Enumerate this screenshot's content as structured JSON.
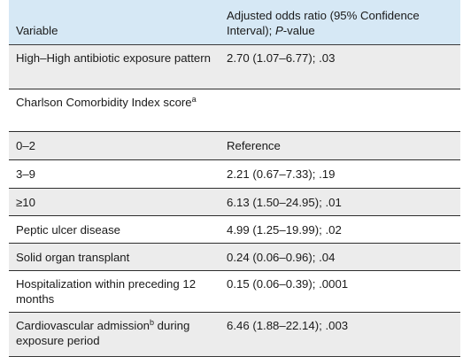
{
  "header": {
    "variable_label": "Variable",
    "col2_line1": "Adjusted odds ratio (95% Confidence",
    "col2_line2_prefix": "Interval); ",
    "col2_line2_italic": "P",
    "col2_line2_suffix": "-value"
  },
  "rows": [
    {
      "variable": "High–High antibiotic exposure pattern",
      "value": "2.70 (1.07–6.77); .03"
    },
    {
      "variable_main": "Charlson Comorbidity Index score",
      "variable_sup": "a",
      "value": ""
    },
    {
      "variable": "0–2",
      "value": "Reference"
    },
    {
      "variable": "3–9",
      "value": "2.21 (0.67–7.33); .19"
    },
    {
      "variable": "≥10",
      "value": "6.13 (1.50–24.95); .01"
    },
    {
      "variable": "Peptic ulcer disease",
      "value": "4.99 (1.25–19.99); .02"
    },
    {
      "variable": "Solid organ transplant",
      "value": "0.24 (0.06–0.96); .04"
    },
    {
      "variable": "Hospitalization within preceding 12 months",
      "value": "0.15 (0.06–0.39); .0001"
    },
    {
      "variable_pre": "Cardiovascular admission",
      "variable_sup": "b",
      "variable_post": " during exposure period",
      "value": "6.46 (1.88–22.14); .003"
    }
  ]
}
